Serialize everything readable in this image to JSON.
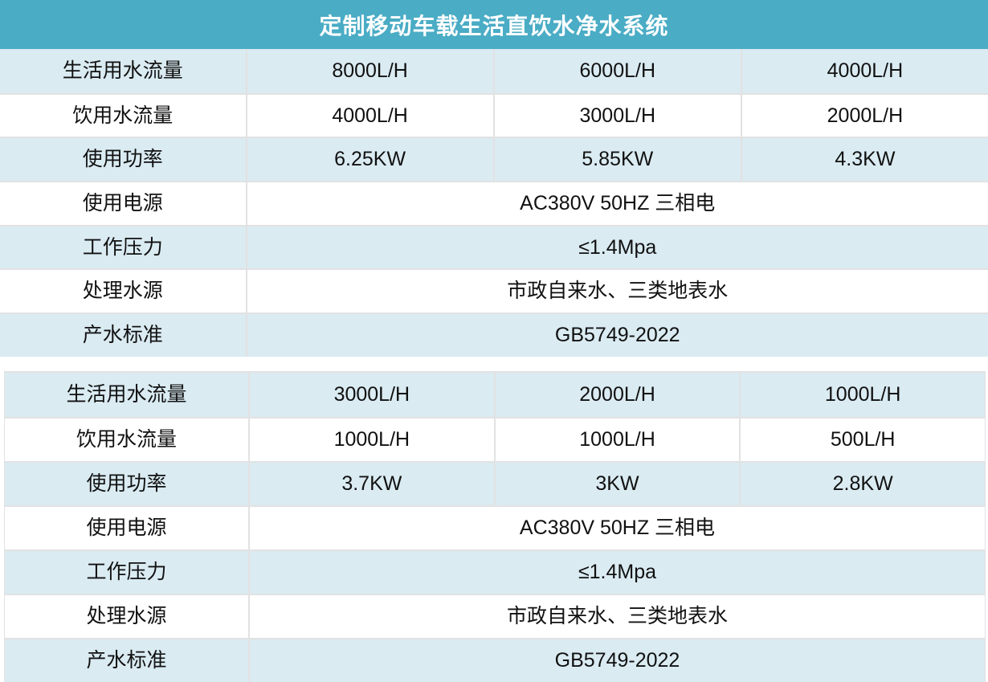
{
  "title": "定制移动车载生活直饮水净水系统",
  "colors": {
    "header_bg": "#4aacc5",
    "header_text": "#ffffff",
    "row_shaded_bg": "#daebf2",
    "row_plain_bg": "#ffffff",
    "border": "#e2e2e2",
    "body_text": "#111111"
  },
  "tables": [
    {
      "name": "spec-table-1",
      "rows": [
        {
          "label": "生活用水流量",
          "values": [
            "8000L/H",
            "6000L/H",
            "4000L/H"
          ],
          "shaded": true
        },
        {
          "label": "饮用水流量",
          "values": [
            "4000L/H",
            "3000L/H",
            "2000L/H"
          ],
          "shaded": false
        },
        {
          "label": "使用功率",
          "values": [
            "6.25KW",
            "5.85KW",
            "4.3KW"
          ],
          "shaded": true
        },
        {
          "label": "使用电源",
          "values": [
            "AC380V 50HZ 三相电"
          ],
          "shaded": false
        },
        {
          "label": "工作压力",
          "values": [
            "≤1.4Mpa"
          ],
          "shaded": true
        },
        {
          "label": "处理水源",
          "values": [
            "市政自来水、三类地表水"
          ],
          "shaded": false
        },
        {
          "label": "产水标准",
          "values": [
            "GB5749-2022"
          ],
          "shaded": true
        }
      ]
    },
    {
      "name": "spec-table-2",
      "rows": [
        {
          "label": "生活用水流量",
          "values": [
            "3000L/H",
            "2000L/H",
            "1000L/H"
          ],
          "shaded": true
        },
        {
          "label": "饮用水流量",
          "values": [
            "1000L/H",
            "1000L/H",
            "500L/H"
          ],
          "shaded": false
        },
        {
          "label": "使用功率",
          "values": [
            "3.7KW",
            "3KW",
            "2.8KW"
          ],
          "shaded": true
        },
        {
          "label": "使用电源",
          "values": [
            "AC380V 50HZ 三相电"
          ],
          "shaded": false
        },
        {
          "label": "工作压力",
          "values": [
            "≤1.4Mpa"
          ],
          "shaded": true
        },
        {
          "label": "处理水源",
          "values": [
            "市政自来水、三类地表水"
          ],
          "shaded": false
        },
        {
          "label": "产水标准",
          "values": [
            "GB5749-2022"
          ],
          "shaded": true
        }
      ]
    }
  ]
}
